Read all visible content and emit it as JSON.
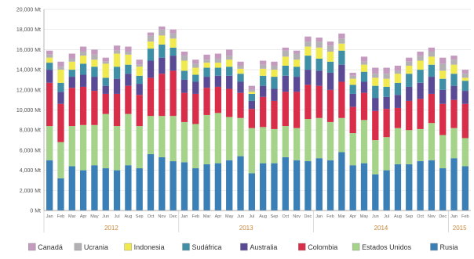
{
  "chart_data": {
    "type": "bar",
    "stacked": true,
    "title": "",
    "xlabel": "",
    "ylabel": "",
    "ylim": [
      0,
      20000
    ],
    "y_ticks": [
      "0 Mt",
      "2,000 Mt",
      "4,000 Mt",
      "6,000 Mt",
      "8,000 Mt",
      "10,000 Mt",
      "12,000 Mt",
      "14,000 Mt",
      "16,000 Mt",
      "18,000 Mt",
      "20,000 Mt"
    ],
    "grid": true,
    "legend_position": "bottom",
    "categories": [
      "Jan",
      "Feb",
      "Mar",
      "Apr",
      "May",
      "Jun",
      "Jul",
      "Aug",
      "Sep",
      "Oct",
      "Nov",
      "Dec",
      "Jan",
      "Feb",
      "Mar",
      "Apr",
      "May",
      "Jun",
      "Jul",
      "Aug",
      "Sep",
      "Oct",
      "Nov",
      "Dec",
      "Jan",
      "Feb",
      "Mar",
      "Apr",
      "May",
      "Jun",
      "Jul",
      "Aug",
      "Sep",
      "Oct",
      "Nov",
      "Dec",
      "Jan",
      "Feb"
    ],
    "years": [
      {
        "label": "2012",
        "start": 0,
        "end": 11
      },
      {
        "label": "2013",
        "start": 12,
        "end": 23
      },
      {
        "label": "2014",
        "start": 24,
        "end": 35
      },
      {
        "label": "2015",
        "start": 36,
        "end": 37
      }
    ],
    "series": [
      {
        "name": "Rusia",
        "color": "#3a7fb6",
        "values": [
          5000,
          3200,
          4400,
          4000,
          4500,
          4200,
          4000,
          4500,
          4200,
          5600,
          5300,
          4900,
          4800,
          4200,
          4600,
          4700,
          5000,
          5400,
          3700,
          4700,
          4700,
          5300,
          5000,
          4900,
          5200,
          5000,
          5800,
          4500,
          4700,
          3600,
          4000,
          4600,
          4600,
          4900,
          5000,
          4200,
          5200,
          4400
        ]
      },
      {
        "name": "Estados Unidos",
        "color": "#a6d38a",
        "values": [
          3400,
          3600,
          4000,
          4500,
          4000,
          5400,
          4400,
          5100,
          4200,
          3800,
          4100,
          4500,
          4000,
          4400,
          4900,
          5000,
          4300,
          3800,
          4500,
          3600,
          3400,
          3100,
          3200,
          4200,
          4000,
          3800,
          3400,
          3200,
          4300,
          3400,
          3300,
          3600,
          3400,
          3200,
          3700,
          3300,
          3000,
          2800
        ]
      },
      {
        "name": "Colombia",
        "color": "#d92e4a",
        "values": [
          4300,
          3800,
          3800,
          3800,
          3400,
          2000,
          3200,
          2800,
          3100,
          3800,
          4200,
          4500,
          2900,
          3000,
          2700,
          2600,
          2800,
          2500,
          1900,
          3000,
          2800,
          3400,
          3600,
          3400,
          3200,
          3200,
          3600,
          2600,
          2700,
          2900,
          2800,
          2000,
          2900,
          3000,
          2900,
          3100,
          2800,
          3400
        ]
      },
      {
        "name": "Australia",
        "color": "#5a4a96",
        "values": [
          1300,
          1200,
          1100,
          1200,
          1400,
          800,
          1500,
          1200,
          1100,
          1700,
          1600,
          1500,
          1300,
          1200,
          1100,
          1100,
          1300,
          1100,
          800,
          1100,
          1200,
          1600,
          1500,
          1500,
          1500,
          1700,
          1700,
          1300,
          1100,
          1300,
          1200,
          1300,
          1400,
          1600,
          1700,
          1400,
          1400,
          1300
        ]
      },
      {
        "name": "Sudáfrica",
        "color": "#3f8fa6",
        "values": [
          700,
          900,
          700,
          1100,
          1000,
          800,
          1200,
          900,
          800,
          1200,
          1300,
          800,
          900,
          700,
          900,
          800,
          900,
          800,
          700,
          1000,
          1200,
          1000,
          1000,
          1400,
          1200,
          1100,
          1400,
          900,
          1000,
          1200,
          1000,
          1200,
          1300,
          1300,
          1200,
          1100,
          1200,
          1000
        ]
      },
      {
        "name": "Indonesia",
        "color": "#f0ea50",
        "values": [
          500,
          1300,
          800,
          800,
          700,
          1400,
          1300,
          1000,
          900,
          700,
          900,
          900,
          1000,
          700,
          500,
          500,
          700,
          500,
          200,
          700,
          700,
          900,
          700,
          900,
          1100,
          1000,
          700,
          600,
          700,
          800,
          800,
          900,
          800,
          900,
          800,
          800,
          900,
          300
        ]
      },
      {
        "name": "Ucrania",
        "color": "#b3b1b3",
        "values": [
          300,
          300,
          300,
          400,
          500,
          200,
          300,
          300,
          200,
          600,
          600,
          500,
          500,
          400,
          300,
          400,
          400,
          300,
          200,
          400,
          400,
          600,
          600,
          500,
          600,
          600,
          500,
          300,
          300,
          400,
          500,
          300,
          400,
          500,
          500,
          700,
          500,
          400
        ]
      },
      {
        "name": "Canadá",
        "color": "#c49bbf",
        "values": [
          400,
          500,
          500,
          500,
          500,
          400,
          500,
          500,
          500,
          300,
          300,
          400,
          400,
          400,
          500,
          500,
          600,
          400,
          400,
          400,
          400,
          300,
          300,
          500,
          400,
          400,
          500,
          300,
          500,
          600,
          600,
          500,
          400,
          400,
          400,
          600,
          400,
          400
        ]
      }
    ]
  }
}
